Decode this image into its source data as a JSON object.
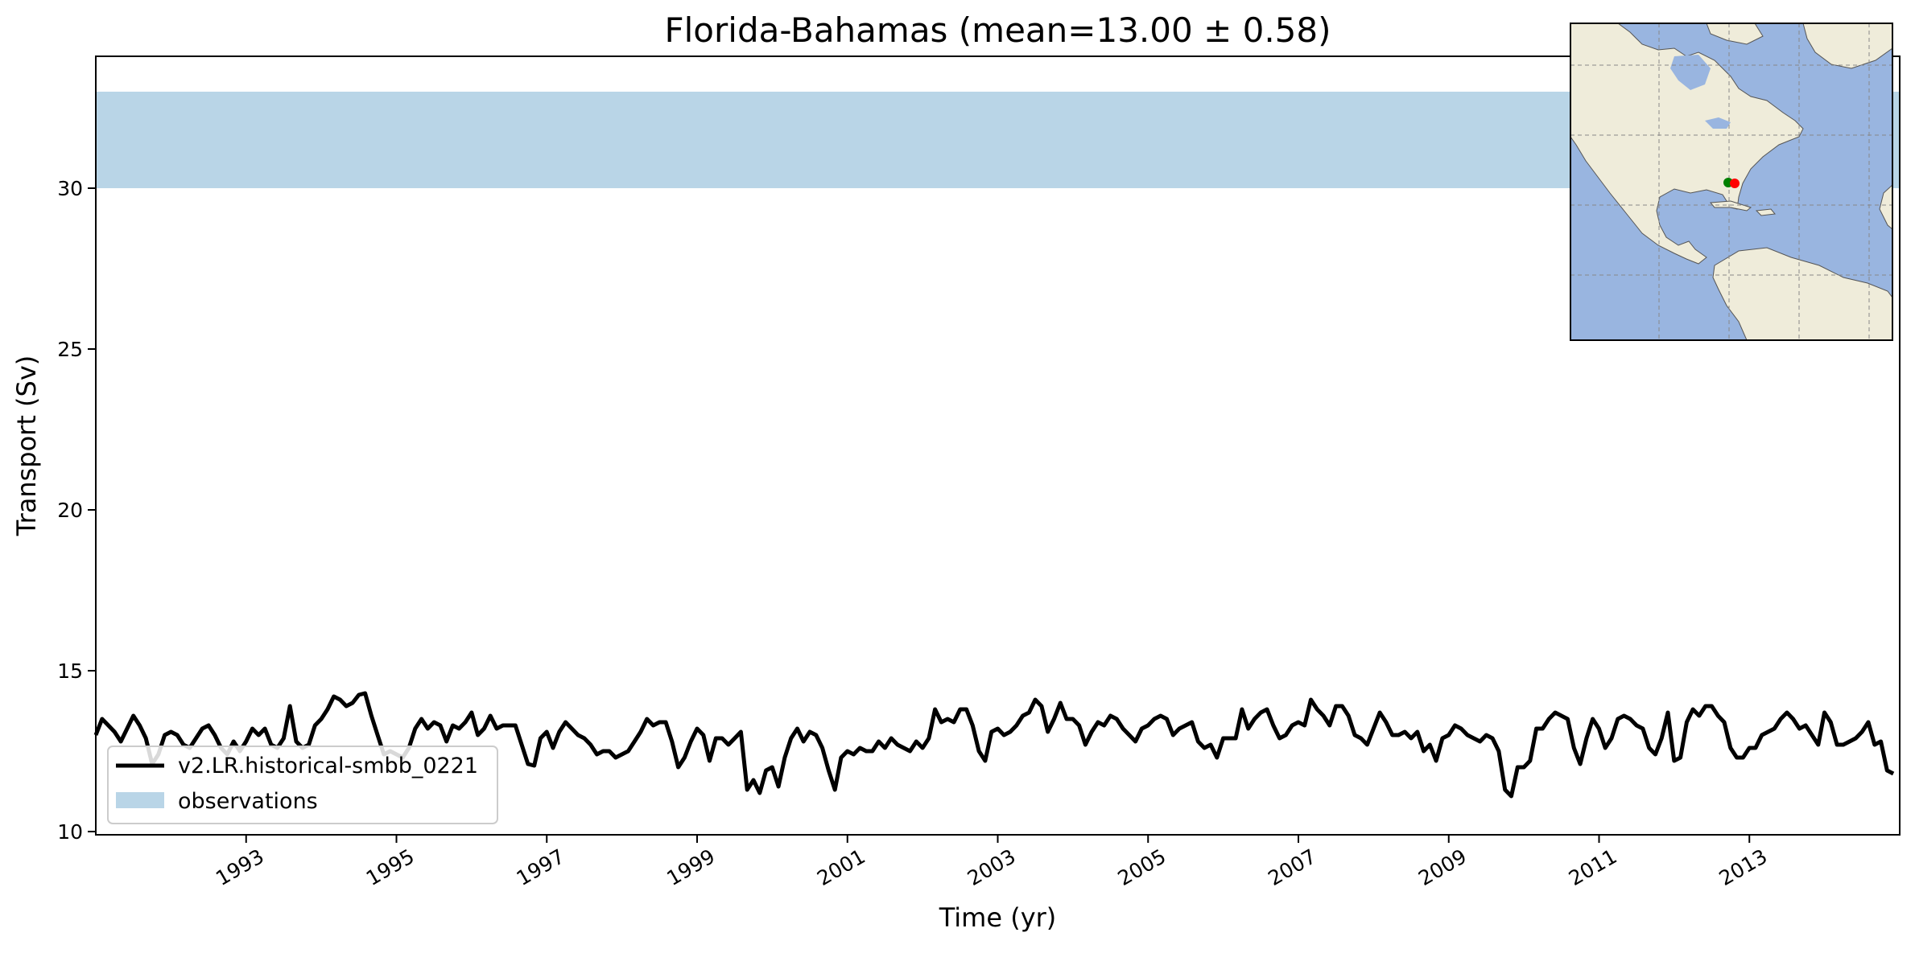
{
  "chart_data": {
    "type": "line",
    "title": "Florida-Bahamas (mean=13.00 ± 0.58)",
    "xlabel": "Time (yr)",
    "ylabel": "Transport (Sv)",
    "xlim": [
      1991.0,
      2015.0
    ],
    "ylim": [
      9.9,
      34.1
    ],
    "x_ticks": [
      1993,
      1995,
      1997,
      1999,
      2001,
      2003,
      2005,
      2007,
      2009,
      2011,
      2013
    ],
    "x_tick_labels": [
      "1993",
      "1995",
      "1997",
      "1999",
      "2001",
      "2003",
      "2005",
      "2007",
      "2009",
      "2011",
      "2013"
    ],
    "y_ticks": [
      10,
      15,
      20,
      25,
      30
    ],
    "y_tick_labels": [
      "10",
      "15",
      "20",
      "25",
      "30"
    ],
    "grid": false,
    "legend_position": "lower-left",
    "observation_band": {
      "name": "observations",
      "ymin": 30.0,
      "ymax": 33.0,
      "color": "#b9d5e7"
    },
    "series": [
      {
        "name": "v2.LR.historical-smbb_0221",
        "color": "#000000",
        "x_start": 1991.0,
        "x_step": 0.08333,
        "values": [
          13.0,
          13.5,
          13.3,
          13.1,
          12.8,
          13.2,
          13.6,
          13.3,
          12.9,
          12.1,
          12.4,
          13.0,
          13.1,
          13.0,
          12.7,
          12.6,
          12.9,
          13.2,
          13.3,
          13.0,
          12.6,
          12.4,
          12.8,
          12.5,
          12.8,
          13.2,
          13.0,
          13.2,
          12.7,
          12.6,
          12.9,
          13.9,
          12.8,
          12.6,
          12.7,
          13.3,
          13.5,
          13.8,
          14.2,
          14.1,
          13.9,
          14.0,
          14.25,
          14.3,
          13.6,
          13.0,
          12.4,
          12.5,
          12.4,
          12.3,
          12.6,
          13.2,
          13.5,
          13.2,
          13.4,
          13.3,
          12.8,
          13.3,
          13.2,
          13.4,
          13.7,
          13.0,
          13.2,
          13.6,
          13.2,
          13.3,
          13.3,
          13.3,
          12.7,
          12.1,
          12.05,
          12.9,
          13.1,
          12.6,
          13.1,
          13.4,
          13.2,
          13.0,
          12.9,
          12.7,
          12.4,
          12.5,
          12.5,
          12.3,
          12.4,
          12.5,
          12.8,
          13.1,
          13.5,
          13.3,
          13.4,
          13.4,
          12.8,
          12.0,
          12.3,
          12.8,
          13.2,
          13.0,
          12.2,
          12.9,
          12.9,
          12.7,
          12.9,
          13.1,
          11.3,
          11.6,
          11.2,
          11.9,
          12.0,
          11.4,
          12.3,
          12.9,
          13.2,
          12.8,
          13.1,
          13.0,
          12.6,
          11.9,
          11.3,
          12.3,
          12.5,
          12.4,
          12.6,
          12.5,
          12.5,
          12.8,
          12.6,
          12.9,
          12.7,
          12.6,
          12.5,
          12.8,
          12.6,
          12.9,
          13.8,
          13.4,
          13.5,
          13.4,
          13.8,
          13.8,
          13.3,
          12.5,
          12.2,
          13.1,
          13.2,
          13.0,
          13.1,
          13.3,
          13.6,
          13.7,
          14.1,
          13.9,
          13.1,
          13.5,
          14.0,
          13.5,
          13.5,
          13.3,
          12.7,
          13.1,
          13.4,
          13.3,
          13.6,
          13.5,
          13.2,
          13.0,
          12.8,
          13.2,
          13.3,
          13.5,
          13.6,
          13.5,
          13.0,
          13.2,
          13.3,
          13.4,
          12.8,
          12.6,
          12.7,
          12.3,
          12.9,
          12.9,
          12.9,
          13.8,
          13.2,
          13.5,
          13.7,
          13.8,
          13.3,
          12.9,
          13.0,
          13.3,
          13.4,
          13.3,
          14.1,
          13.8,
          13.6,
          13.3,
          13.9,
          13.9,
          13.6,
          13.0,
          12.9,
          12.7,
          13.2,
          13.7,
          13.4,
          13.0,
          13.0,
          13.1,
          12.9,
          13.1,
          12.5,
          12.7,
          12.2,
          12.9,
          13.0,
          13.3,
          13.2,
          13.0,
          12.9,
          12.8,
          13.0,
          12.9,
          12.5,
          11.3,
          11.1,
          12.0,
          12.0,
          12.2,
          13.2,
          13.2,
          13.5,
          13.7,
          13.6,
          13.5,
          12.6,
          12.1,
          12.9,
          13.5,
          13.2,
          12.6,
          12.9,
          13.5,
          13.6,
          13.5,
          13.3,
          13.2,
          12.6,
          12.4,
          12.9,
          13.7,
          12.2,
          12.3,
          13.4,
          13.8,
          13.6,
          13.9,
          13.9,
          13.6,
          13.4,
          12.6,
          12.3,
          12.3,
          12.6,
          12.6,
          13.0,
          13.1,
          13.2,
          13.5,
          13.7,
          13.5,
          13.2,
          13.3,
          13.0,
          12.7,
          13.7,
          13.4,
          12.7,
          12.7,
          12.8,
          12.9,
          13.1,
          13.4,
          12.7,
          12.8,
          11.9,
          11.8
        ]
      }
    ],
    "inset_map": {
      "description": "Locator map of the Americas",
      "land_color": "#efecda",
      "ocean_color": "#99b5e0",
      "markers": [
        {
          "color": "#008000"
        },
        {
          "color": "#ff0000"
        }
      ]
    }
  }
}
